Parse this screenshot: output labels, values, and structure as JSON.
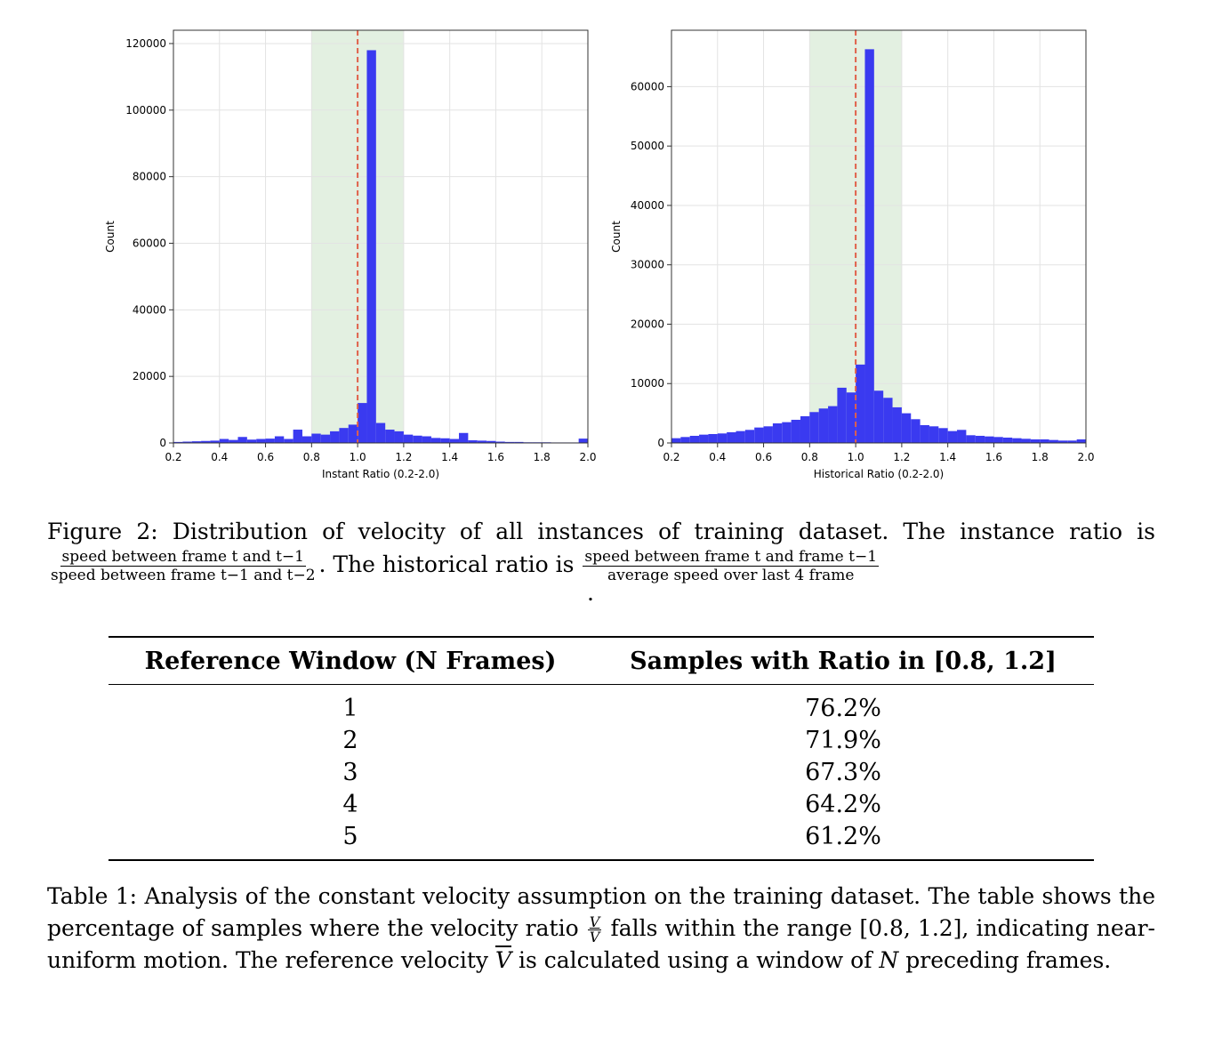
{
  "chart_data": [
    {
      "type": "bar",
      "xlabel": "Instant Ratio (0.2-2.0)",
      "ylabel": "Count",
      "xlim": [
        0.2,
        2.0
      ],
      "ylim": [
        0,
        124000
      ],
      "x_ticks": [
        "0.2",
        "0.4",
        "0.6",
        "0.8",
        "1.0",
        "1.2",
        "1.4",
        "1.6",
        "1.8",
        "2.0"
      ],
      "y_ticks": [
        "0",
        "20000",
        "40000",
        "60000",
        "80000",
        "100000",
        "120000"
      ],
      "bin_width": 0.04,
      "bin_starts": [
        0.2,
        0.24,
        0.28,
        0.32,
        0.36,
        0.4,
        0.44,
        0.48,
        0.52,
        0.56,
        0.6,
        0.64,
        0.68,
        0.72,
        0.76,
        0.8,
        0.84,
        0.88,
        0.92,
        0.96,
        1.0,
        1.04,
        1.08,
        1.12,
        1.16,
        1.2,
        1.24,
        1.28,
        1.32,
        1.36,
        1.4,
        1.44,
        1.48,
        1.52,
        1.56,
        1.6,
        1.64,
        1.68,
        1.72,
        1.76,
        1.8,
        1.84,
        1.88,
        1.92,
        1.96
      ],
      "values": [
        300,
        400,
        500,
        600,
        700,
        1200,
        900,
        1800,
        1000,
        1200,
        1300,
        2000,
        1200,
        4000,
        2000,
        2800,
        2500,
        3500,
        4500,
        5500,
        12000,
        118000,
        6000,
        4000,
        3500,
        2500,
        2200,
        2000,
        1500,
        1400,
        1200,
        3000,
        800,
        700,
        600,
        400,
        300,
        300,
        200,
        200,
        200,
        150,
        150,
        150,
        1300
      ],
      "highlight_range": [
        0.8,
        1.2
      ],
      "reference_line": 1.0,
      "grid": true
    },
    {
      "type": "bar",
      "xlabel": "Historical Ratio (0.2-2.0)",
      "ylabel": "Count",
      "xlim": [
        0.2,
        2.0
      ],
      "ylim": [
        0,
        69500
      ],
      "x_ticks": [
        "0.2",
        "0.4",
        "0.6",
        "0.8",
        "1.0",
        "1.2",
        "1.4",
        "1.6",
        "1.8",
        "2.0"
      ],
      "y_ticks": [
        "0",
        "10000",
        "20000",
        "30000",
        "40000",
        "50000",
        "60000"
      ],
      "bin_width": 0.04,
      "bin_starts": [
        0.2,
        0.24,
        0.28,
        0.32,
        0.36,
        0.4,
        0.44,
        0.48,
        0.52,
        0.56,
        0.6,
        0.64,
        0.68,
        0.72,
        0.76,
        0.8,
        0.84,
        0.88,
        0.92,
        0.96,
        1.0,
        1.04,
        1.08,
        1.12,
        1.16,
        1.2,
        1.24,
        1.28,
        1.32,
        1.36,
        1.4,
        1.44,
        1.48,
        1.52,
        1.56,
        1.6,
        1.64,
        1.68,
        1.72,
        1.76,
        1.8,
        1.84,
        1.88,
        1.92,
        1.96
      ],
      "values": [
        800,
        1000,
        1200,
        1400,
        1500,
        1600,
        1800,
        2000,
        2200,
        2600,
        2800,
        3300,
        3500,
        3900,
        4500,
        5200,
        5800,
        6200,
        9300,
        8500,
        13200,
        66300,
        8800,
        7600,
        6000,
        5000,
        4000,
        3000,
        2800,
        2500,
        2000,
        2200,
        1300,
        1200,
        1100,
        1000,
        900,
        800,
        700,
        600,
        600,
        500,
        400,
        400,
        600
      ],
      "highlight_range": [
        0.8,
        1.2
      ],
      "reference_line": 1.0,
      "grid": true
    }
  ],
  "figure_caption": {
    "lead": "Figure 2:  Distribution of velocity of all instances of training dataset.  The instance ratio is",
    "inst_num": "speed between frame t and t−1",
    "inst_den": "speed between frame t−1 and t−2",
    "mid": ". The historical ratio is",
    "hist_num": "speed between frame t and frame t−1",
    "hist_den": "average speed over last 4 frame",
    "trail": "."
  },
  "table": {
    "headers": [
      "Reference Window (N Frames)",
      "Samples with Ratio in [0.8, 1.2]"
    ],
    "rows": [
      [
        "1",
        "76.2%"
      ],
      [
        "2",
        "71.9%"
      ],
      [
        "3",
        "67.3%"
      ],
      [
        "4",
        "64.2%"
      ],
      [
        "5",
        "61.2%"
      ]
    ]
  },
  "table_caption": {
    "part1": "Table 1: Analysis of the constant velocity assumption on the training dataset. The table shows the percentage of samples where the velocity ratio",
    "frac_num": "V",
    "frac_den": "V",
    "part2": "falls within the range [0.8, 1.2], indicating near-uniform motion.  The reference velocity",
    "vbar": "V",
    "part3": "is calculated using a window of",
    "n": "N",
    "part4": "preceding frames."
  },
  "colors": {
    "bar": "#3a3af0",
    "highlight": "#e3f0e1",
    "reference_line": "#e0604a",
    "grid": "#e3e3e3"
  }
}
